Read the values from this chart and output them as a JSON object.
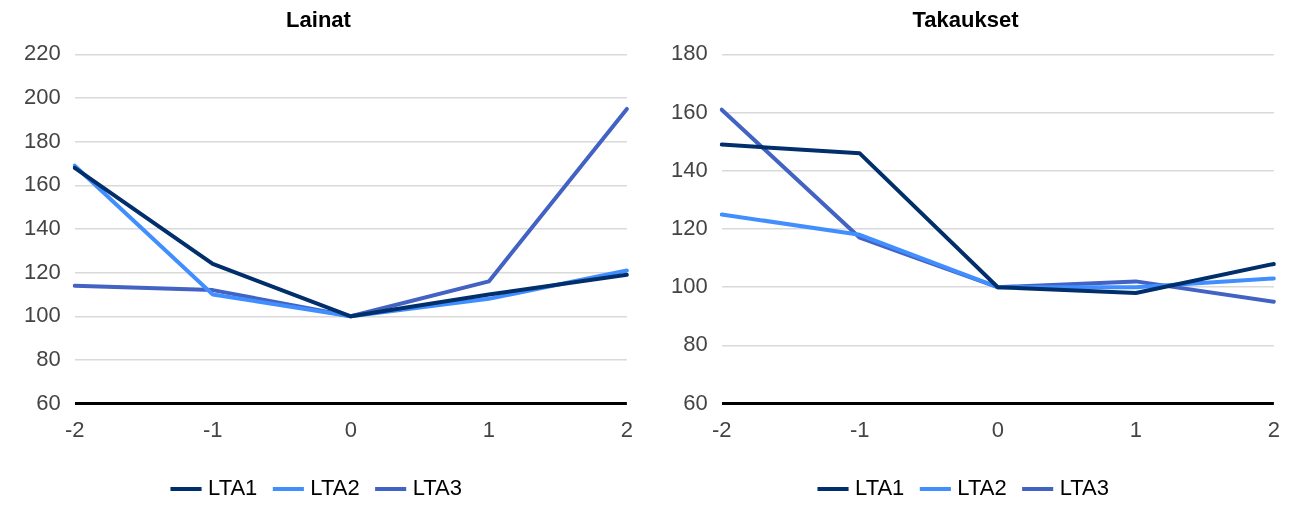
{
  "chart_data": [
    {
      "type": "line",
      "title": "Lainat",
      "categories": [
        "-2",
        "-1",
        "0",
        "1",
        "2"
      ],
      "series": [
        {
          "name": "LTA1",
          "color": "#002f6c",
          "values": [
            168,
            124,
            100,
            110,
            119
          ]
        },
        {
          "name": "LTA2",
          "color": "#418fff",
          "values": [
            169,
            110,
            100,
            108,
            121
          ]
        },
        {
          "name": "LTA3",
          "color": "#4262c4",
          "values": [
            114,
            112,
            100,
            116,
            195
          ]
        }
      ],
      "ylim": [
        60,
        220
      ],
      "yticks": [
        60,
        80,
        100,
        120,
        140,
        160,
        180,
        200,
        220
      ],
      "grid": "y",
      "legend": "bottom",
      "marker": "none",
      "line_style": "solid"
    },
    {
      "type": "line",
      "title": "Takaukset",
      "categories": [
        "-2",
        "-1",
        "0",
        "1",
        "2"
      ],
      "series": [
        {
          "name": "LTA1",
          "color": "#002f6c",
          "values": [
            149,
            146,
            100,
            98,
            108
          ]
        },
        {
          "name": "LTA2",
          "color": "#418fff",
          "values": [
            125,
            118,
            100,
            100,
            103
          ]
        },
        {
          "name": "LTA3",
          "color": "#4262c4",
          "values": [
            161,
            117,
            100,
            102,
            95
          ]
        }
      ],
      "ylim": [
        60,
        180
      ],
      "yticks": [
        60,
        80,
        100,
        120,
        140,
        160,
        180
      ],
      "grid": "y",
      "legend": "bottom",
      "marker": "none",
      "line_style": "solid"
    }
  ]
}
